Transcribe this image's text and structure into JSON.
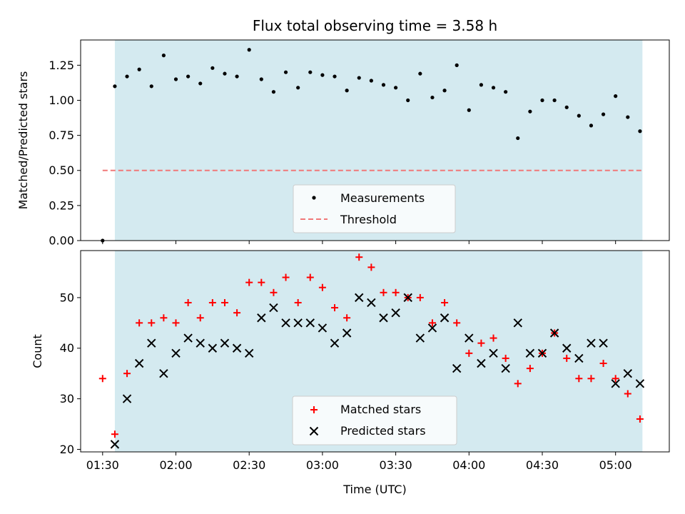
{
  "colors": {
    "observing_span": "#d4eaf0",
    "threshold": "#f07878",
    "measurement": "#000000",
    "matched": "#ff0000",
    "predicted": "#000000"
  },
  "chart_data": [
    {
      "type": "scatter",
      "title": "Flux total observing time = 3.58 h",
      "ylabel": "Matched/Predicted stars",
      "xlabel": "",
      "ylim": [
        0,
        1.43
      ],
      "yticks": [
        "0.00",
        "0.25",
        "0.50",
        "0.75",
        "1.00",
        "1.25"
      ],
      "ytick_values": [
        0,
        0.25,
        0.5,
        0.75,
        1.0,
        1.25
      ],
      "observing_span": [
        "01:35",
        "05:11"
      ],
      "legend_position": "lower center",
      "series": [
        {
          "name": "Measurements",
          "marker": "dot",
          "x": [
            "01:30",
            "01:35",
            "01:40",
            "01:45",
            "01:50",
            "01:55",
            "02:00",
            "02:05",
            "02:10",
            "02:15",
            "02:20",
            "02:25",
            "02:30",
            "02:35",
            "02:40",
            "02:45",
            "02:50",
            "02:55",
            "03:00",
            "03:05",
            "03:10",
            "03:15",
            "03:20",
            "03:25",
            "03:30",
            "03:35",
            "03:40",
            "03:45",
            "03:50",
            "03:55",
            "04:00",
            "04:05",
            "04:10",
            "04:15",
            "04:20",
            "04:25",
            "04:30",
            "04:35",
            "04:40",
            "04:45",
            "04:50",
            "04:55",
            "05:00",
            "05:05",
            "05:10"
          ],
          "y": [
            0.0,
            1.1,
            1.17,
            1.22,
            1.1,
            1.32,
            1.15,
            1.17,
            1.12,
            1.23,
            1.19,
            1.17,
            1.36,
            1.15,
            1.06,
            1.2,
            1.09,
            1.2,
            1.18,
            1.17,
            1.07,
            1.16,
            1.14,
            1.11,
            1.09,
            1.0,
            1.19,
            1.02,
            1.07,
            1.25,
            0.93,
            1.11,
            1.09,
            1.06,
            0.73,
            0.92,
            1.0,
            1.0,
            0.95,
            0.89,
            0.82,
            0.9,
            1.03,
            0.88,
            0.78
          ]
        },
        {
          "name": "Threshold",
          "marker": "dashed-line",
          "x": [
            "01:30",
            "05:11"
          ],
          "y": [
            0.5,
            0.5
          ]
        }
      ]
    },
    {
      "type": "scatter",
      "title": "",
      "ylabel": "Count",
      "xlabel": "Time (UTC)",
      "ylim": [
        19.5,
        59.3
      ],
      "yticks": [
        "20",
        "30",
        "40",
        "50"
      ],
      "ytick_values": [
        20,
        30,
        40,
        50
      ],
      "x_ticks": [
        "01:30",
        "02:00",
        "02:30",
        "03:00",
        "03:30",
        "04:00",
        "04:30",
        "05:00"
      ],
      "xlim": [
        "01:21",
        "05:22"
      ],
      "observing_span": [
        "01:35",
        "05:11"
      ],
      "legend_position": "lower center",
      "series": [
        {
          "name": "Matched stars",
          "marker": "plus",
          "x": [
            "01:30",
            "01:35",
            "01:40",
            "01:45",
            "01:50",
            "01:55",
            "02:00",
            "02:05",
            "02:10",
            "02:15",
            "02:20",
            "02:25",
            "02:30",
            "02:35",
            "02:40",
            "02:45",
            "02:50",
            "02:55",
            "03:00",
            "03:05",
            "03:10",
            "03:15",
            "03:20",
            "03:25",
            "03:30",
            "03:35",
            "03:40",
            "03:45",
            "03:50",
            "03:55",
            "04:00",
            "04:05",
            "04:10",
            "04:15",
            "04:20",
            "04:25",
            "04:30",
            "04:35",
            "04:40",
            "04:45",
            "04:50",
            "04:55",
            "05:00",
            "05:05",
            "05:10"
          ],
          "y": [
            34,
            23,
            35,
            45,
            45,
            46,
            45,
            49,
            46,
            49,
            49,
            47,
            53,
            53,
            51,
            54,
            49,
            54,
            52,
            48,
            46,
            58,
            56,
            51,
            51,
            50,
            50,
            45,
            49,
            45,
            39,
            41,
            42,
            38,
            33,
            36,
            39,
            43,
            38,
            34,
            34,
            37,
            34,
            31,
            26
          ]
        },
        {
          "name": "Predicted stars",
          "marker": "x",
          "x": [
            "01:35",
            "01:40",
            "01:45",
            "01:50",
            "01:55",
            "02:00",
            "02:05",
            "02:10",
            "02:15",
            "02:20",
            "02:25",
            "02:30",
            "02:35",
            "02:40",
            "02:45",
            "02:50",
            "02:55",
            "03:00",
            "03:05",
            "03:10",
            "03:15",
            "03:20",
            "03:25",
            "03:30",
            "03:35",
            "03:40",
            "03:45",
            "03:50",
            "03:55",
            "04:00",
            "04:05",
            "04:10",
            "04:15",
            "04:20",
            "04:25",
            "04:30",
            "04:35",
            "04:40",
            "04:45",
            "04:50",
            "04:55",
            "05:00",
            "05:05",
            "05:10"
          ],
          "y": [
            21,
            30,
            37,
            41,
            35,
            39,
            42,
            41,
            40,
            41,
            40,
            39,
            46,
            48,
            45,
            45,
            45,
            44,
            41,
            43,
            50,
            49,
            46,
            47,
            50,
            42,
            44,
            46,
            36,
            42,
            37,
            39,
            36,
            45,
            39,
            39,
            43,
            40,
            38,
            41,
            41,
            33,
            35,
            33
          ]
        }
      ]
    }
  ]
}
